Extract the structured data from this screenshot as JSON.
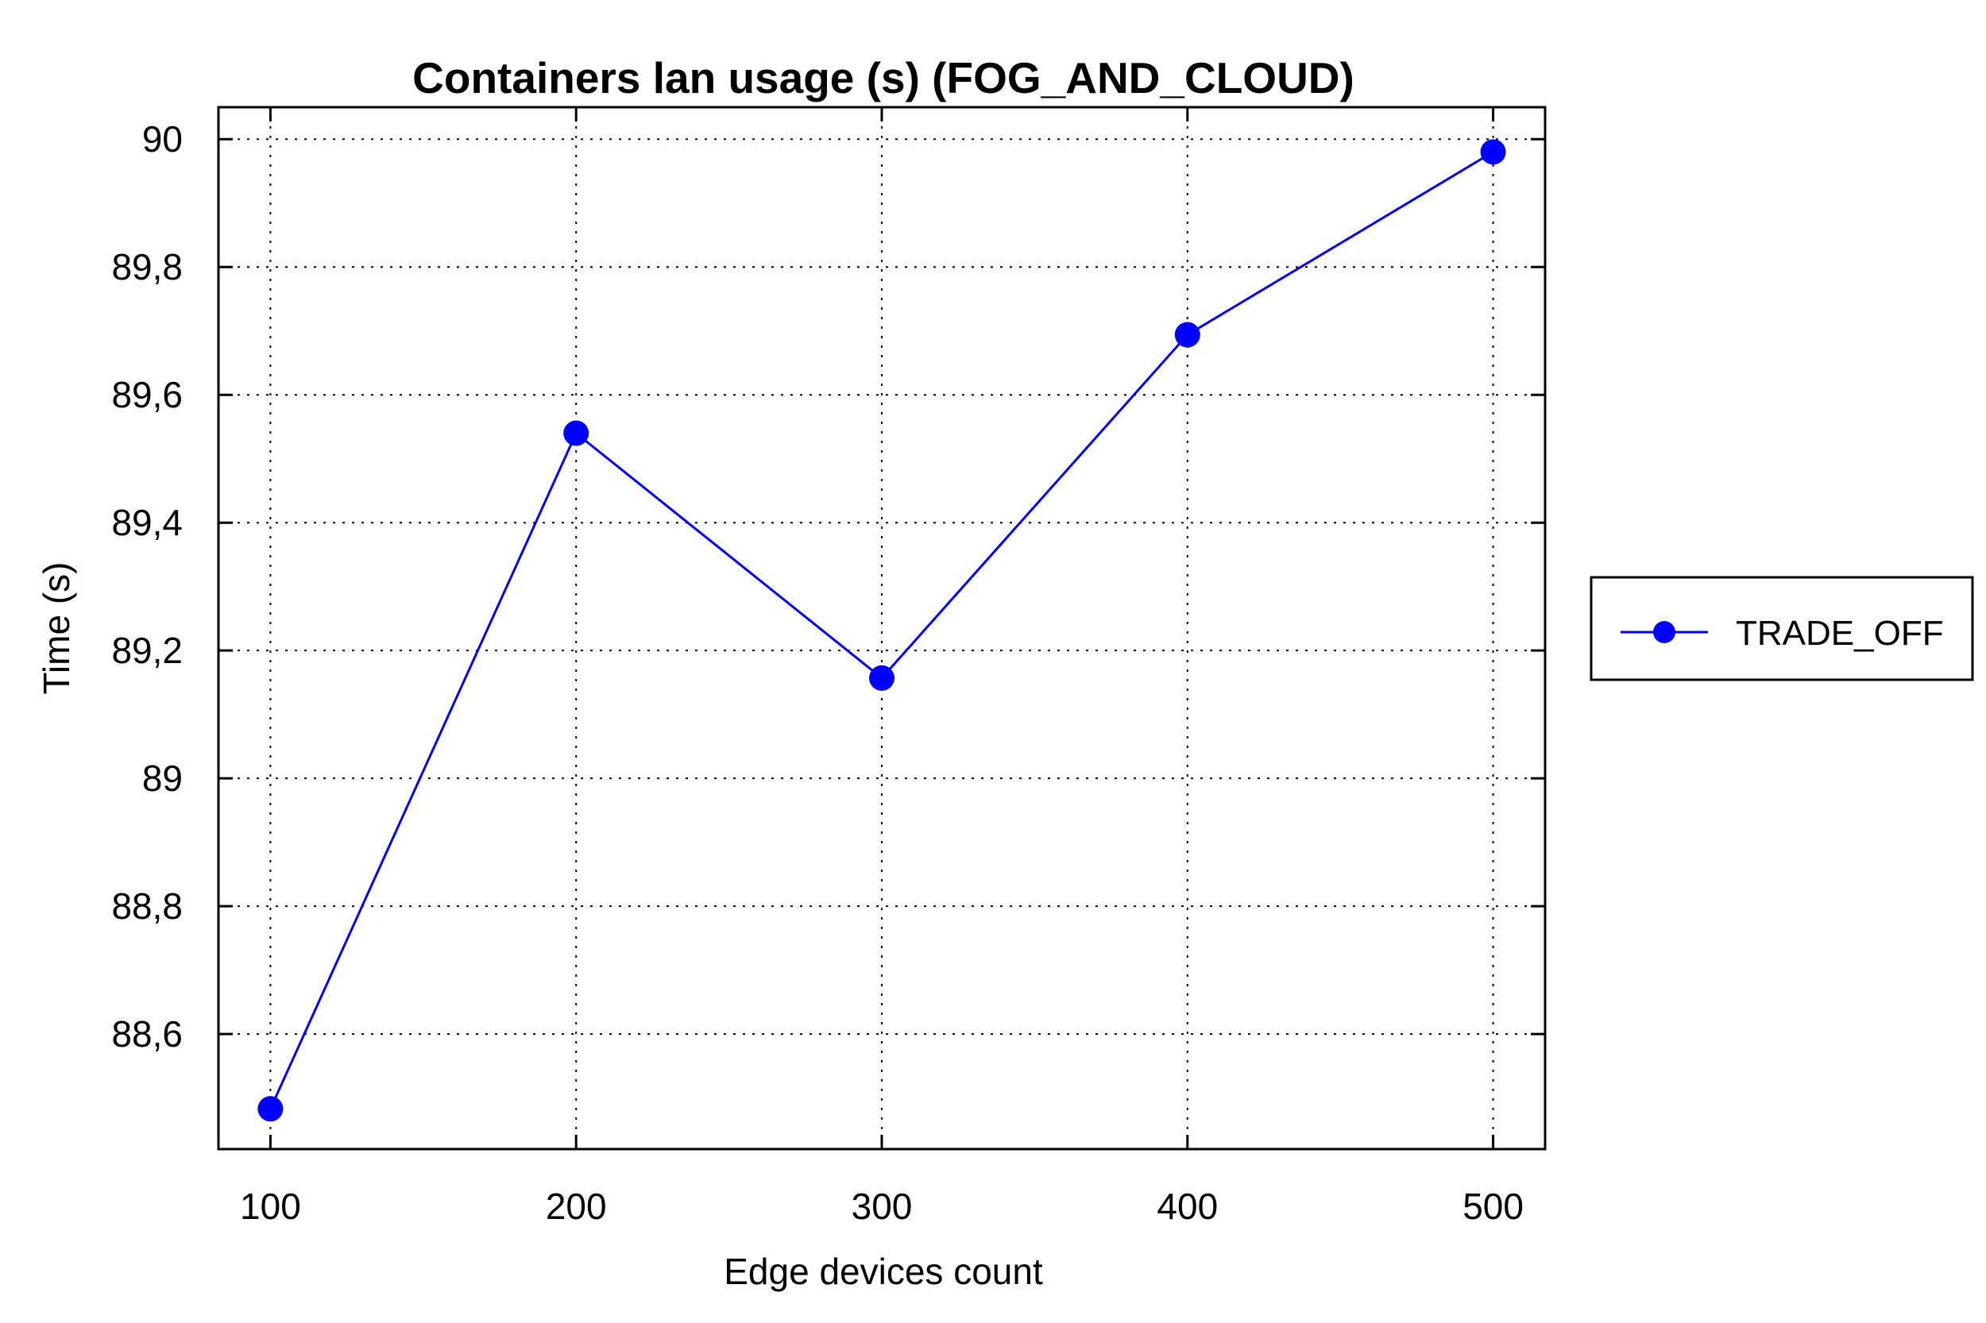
{
  "chart_data": {
    "type": "line",
    "title": "Containers lan usage (s) (FOG_AND_CLOUD)",
    "xlabel": "Edge devices count",
    "ylabel": "Time (s)",
    "x": [
      100,
      200,
      300,
      400,
      500
    ],
    "x_ticks": [
      "100",
      "200",
      "300",
      "400",
      "500"
    ],
    "xlim": [
      83,
      517
    ],
    "y_ticks": [
      88.6,
      88.8,
      89.0,
      89.2,
      89.4,
      89.6,
      89.8,
      90.0
    ],
    "y_tick_labels": [
      "88,6",
      "88,8",
      "89",
      "89,2",
      "89,4",
      "89,6",
      "89,8",
      "90"
    ],
    "ylim": [
      88.42,
      90.05
    ],
    "grid": true,
    "legend_position": "right",
    "series": [
      {
        "name": "TRADE_OFF",
        "values": [
          88.483,
          89.54,
          89.157,
          89.694,
          89.98
        ],
        "color": "#0000ff"
      }
    ]
  }
}
